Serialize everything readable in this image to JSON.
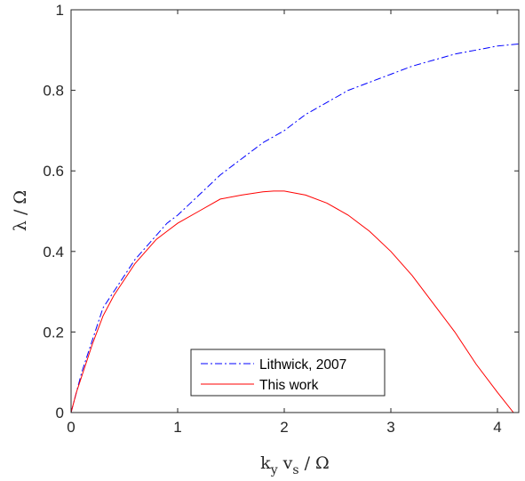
{
  "chart_data": {
    "type": "line",
    "xlim": [
      0,
      4.2
    ],
    "ylim": [
      0,
      1
    ],
    "x_ticks": [
      "0",
      "1",
      "2",
      "3",
      "4"
    ],
    "y_ticks": [
      "0",
      "0.2",
      "0.4",
      "0.6",
      "0.8",
      "1"
    ],
    "xlabel": {
      "parts": [
        {
          "text": "k",
          "sub": false
        },
        {
          "text": "y",
          "sub": true
        },
        {
          "text": " v",
          "sub": false
        },
        {
          "text": "s",
          "sub": true
        },
        {
          "text": " / Ω",
          "sub": false
        }
      ]
    },
    "ylabel": "λ / Ω",
    "grid": false,
    "legend_position": "bottom-center",
    "series": [
      {
        "name": "Lithwick, 2007",
        "color": "#0000ff",
        "style": "dash-dot",
        "x": [
          0,
          0.05,
          0.1,
          0.2,
          0.3,
          0.4,
          0.5,
          0.6,
          0.7,
          0.8,
          0.9,
          1.0,
          1.2,
          1.4,
          1.6,
          1.8,
          2.0,
          2.2,
          2.4,
          2.6,
          2.8,
          3.0,
          3.2,
          3.4,
          3.6,
          3.8,
          4.0,
          4.2
        ],
        "y": [
          0,
          0.05,
          0.1,
          0.18,
          0.26,
          0.3,
          0.34,
          0.38,
          0.41,
          0.44,
          0.47,
          0.49,
          0.54,
          0.59,
          0.63,
          0.67,
          0.7,
          0.74,
          0.77,
          0.8,
          0.82,
          0.84,
          0.86,
          0.875,
          0.89,
          0.9,
          0.91,
          0.915
        ]
      },
      {
        "name": "This work",
        "color": "#ff0000",
        "style": "solid",
        "x": [
          0,
          0.05,
          0.1,
          0.2,
          0.3,
          0.4,
          0.5,
          0.6,
          0.7,
          0.8,
          0.9,
          1.0,
          1.2,
          1.4,
          1.6,
          1.8,
          1.9,
          2.0,
          2.2,
          2.4,
          2.6,
          2.8,
          3.0,
          3.2,
          3.4,
          3.6,
          3.8,
          4.0,
          4.15
        ],
        "y": [
          0,
          0.05,
          0.09,
          0.17,
          0.24,
          0.29,
          0.33,
          0.37,
          0.4,
          0.43,
          0.45,
          0.47,
          0.5,
          0.53,
          0.54,
          0.548,
          0.55,
          0.55,
          0.54,
          0.52,
          0.49,
          0.45,
          0.4,
          0.34,
          0.27,
          0.2,
          0.12,
          0.05,
          0
        ]
      }
    ]
  }
}
